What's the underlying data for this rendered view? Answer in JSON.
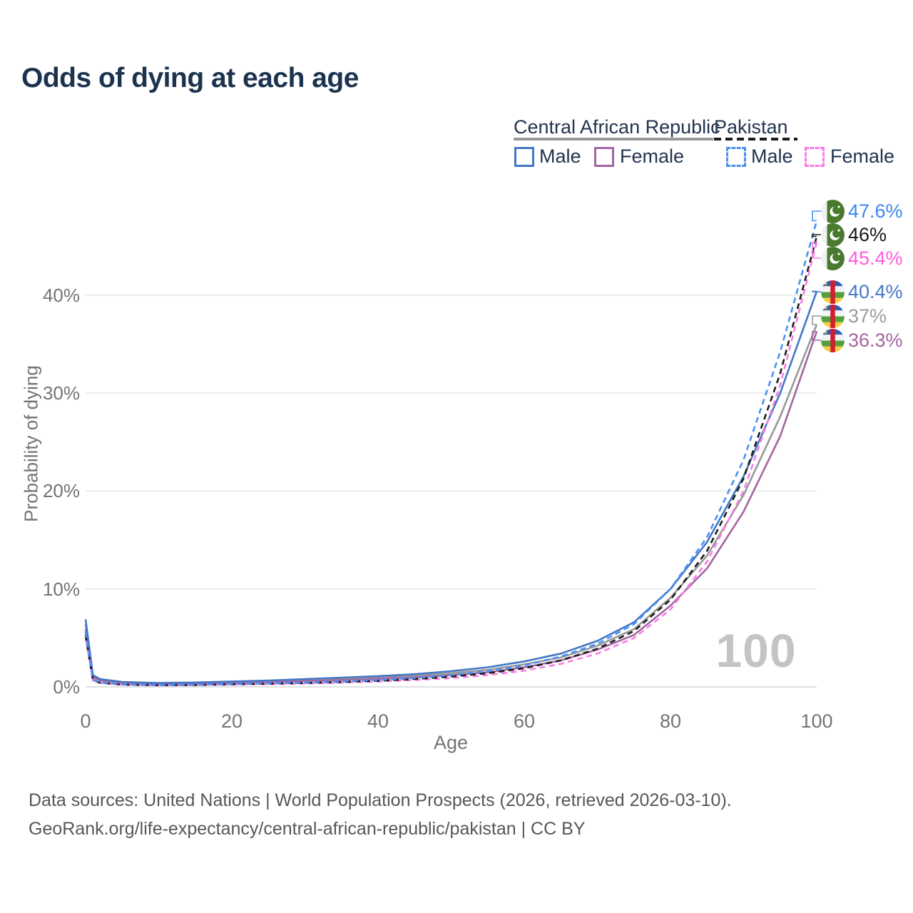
{
  "title": "Odds of dying at each age",
  "legend": {
    "groups": [
      {
        "label": "Central African Republic",
        "line_style": "solid",
        "line_color": "#999999",
        "items": [
          {
            "label": "Male",
            "color": "#4377c6",
            "style": "solid"
          },
          {
            "label": "Female",
            "color": "#a266a0",
            "style": "solid"
          }
        ]
      },
      {
        "label": "Pakistan",
        "line_style": "dashed",
        "line_color": "#1c1c1c",
        "items": [
          {
            "label": "Male",
            "color": "#4a90f5",
            "style": "dashed"
          },
          {
            "label": "Female",
            "color": "#fb7ae6",
            "style": "dashed"
          }
        ]
      }
    ]
  },
  "watermark_age": "100",
  "chart_data": {
    "type": "line",
    "title": "Odds of dying at each age",
    "xlabel": "Age",
    "ylabel": "Probability of dying",
    "xlim": [
      0,
      100
    ],
    "ylim_percent": [
      0,
      48
    ],
    "grid": "horizontal-only",
    "x_ticks": [
      0,
      20,
      40,
      60,
      80,
      100
    ],
    "y_ticks": [
      {
        "value": 0,
        "label": "0%"
      },
      {
        "value": 10,
        "label": "10%"
      },
      {
        "value": 20,
        "label": "20%"
      },
      {
        "value": 30,
        "label": "30%"
      },
      {
        "value": 40,
        "label": "40%"
      }
    ],
    "ages": [
      0,
      1,
      2,
      5,
      10,
      15,
      20,
      25,
      30,
      35,
      40,
      45,
      50,
      55,
      60,
      65,
      70,
      75,
      80,
      85,
      90,
      95,
      100
    ],
    "series": [
      {
        "id": "pak-male",
        "country": "Pakistan",
        "sex": "Male",
        "color": "#4a90f5",
        "label_color": "#3e86f2",
        "dash": "dashed",
        "flag": "pakistan",
        "end_label": "47.6%",
        "values": [
          5.6,
          0.75,
          0.45,
          0.25,
          0.18,
          0.22,
          0.3,
          0.36,
          0.44,
          0.55,
          0.7,
          0.9,
          1.2,
          1.6,
          2.2,
          3.1,
          4.4,
          6.4,
          10.0,
          15.3,
          23.2,
          34.2,
          47.6
        ]
      },
      {
        "id": "pak-both",
        "country": "Pakistan",
        "sex": "Both",
        "color": "#1c1c1c",
        "label_color": "#181818",
        "dash": "dashed",
        "flag": "pakistan",
        "end_label": "46%",
        "values": [
          5.3,
          0.7,
          0.42,
          0.23,
          0.17,
          0.2,
          0.27,
          0.33,
          0.4,
          0.5,
          0.63,
          0.8,
          1.05,
          1.4,
          1.9,
          2.7,
          3.9,
          5.7,
          8.9,
          13.9,
          21.3,
          32.0,
          46.0
        ]
      },
      {
        "id": "pak-female",
        "country": "Pakistan",
        "sex": "Female",
        "color": "#fb7ae6",
        "label_color": "#fb5ce0",
        "dash": "dashed",
        "flag": "pakistan",
        "end_label": "45.4%",
        "values": [
          5.0,
          0.65,
          0.4,
          0.22,
          0.16,
          0.18,
          0.23,
          0.28,
          0.34,
          0.43,
          0.55,
          0.7,
          0.9,
          1.2,
          1.65,
          2.35,
          3.4,
          5.0,
          7.9,
          12.8,
          20.0,
          30.8,
          45.4
        ]
      },
      {
        "id": "car-male",
        "country": "Central African Republic",
        "sex": "Male",
        "color": "#4377c6",
        "label_color": "#4678c8",
        "dash": "solid",
        "flag": "car",
        "end_label": "40.4%",
        "values": [
          6.9,
          1.2,
          0.8,
          0.5,
          0.4,
          0.45,
          0.55,
          0.65,
          0.8,
          0.95,
          1.1,
          1.3,
          1.6,
          2.0,
          2.6,
          3.4,
          4.7,
          6.6,
          10.0,
          14.8,
          21.5,
          30.0,
          40.4
        ]
      },
      {
        "id": "car-both",
        "country": "Central African Republic",
        "sex": "Both",
        "color": "#999999",
        "label_color": "#9b9b9b",
        "dash": "solid",
        "flag": "car",
        "end_label": "37%",
        "values": [
          6.4,
          1.1,
          0.72,
          0.45,
          0.36,
          0.4,
          0.48,
          0.57,
          0.7,
          0.82,
          0.95,
          1.12,
          1.4,
          1.75,
          2.3,
          3.0,
          4.2,
          5.9,
          9.1,
          13.4,
          19.6,
          27.6,
          37.0
        ]
      },
      {
        "id": "car-female",
        "country": "Central African Republic",
        "sex": "Female",
        "color": "#a266a0",
        "label_color": "#a265a2",
        "dash": "solid",
        "flag": "car",
        "end_label": "36.3%",
        "values": [
          5.9,
          1.0,
          0.65,
          0.42,
          0.33,
          0.36,
          0.42,
          0.5,
          0.6,
          0.7,
          0.82,
          0.97,
          1.2,
          1.5,
          2.0,
          2.7,
          3.8,
          5.3,
          8.3,
          12.1,
          17.9,
          25.6,
          36.3
        ]
      }
    ]
  },
  "footer": {
    "line1": "Data sources: United Nations | World Population Prospects (2026, retrieved 2026-03-10).",
    "line2": "GeoRank.org/life-expectancy/central-african-republic/pakistan | CC BY"
  }
}
